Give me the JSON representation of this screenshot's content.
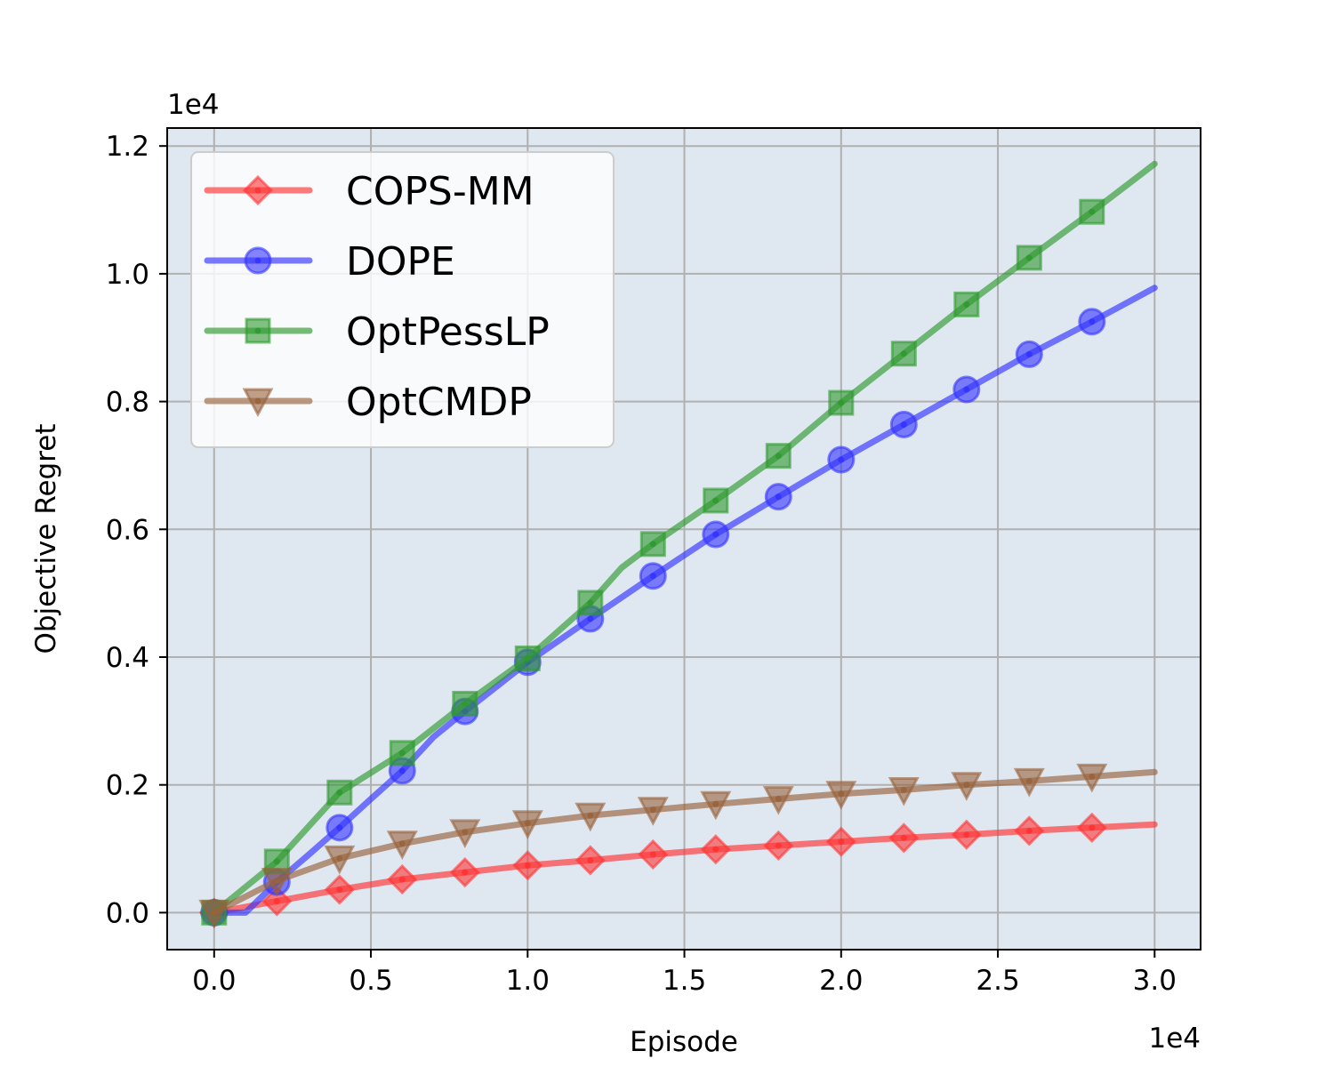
{
  "chart_data": {
    "type": "line",
    "xlabel": "Episode",
    "ylabel": "Objective Regret",
    "x_offset_label": "1e4",
    "y_offset_label": "1e4",
    "xlim": [
      -0.15,
      3.15
    ],
    "ylim": [
      -0.06,
      1.23
    ],
    "x_ticks": [
      0.0,
      0.5,
      1.0,
      1.5,
      2.0,
      2.5,
      3.0
    ],
    "y_ticks": [
      0.0,
      0.2,
      0.4,
      0.6,
      0.8,
      1.0,
      1.2
    ],
    "x_tick_labels": [
      "0.0",
      "0.5",
      "1.0",
      "1.5",
      "2.0",
      "2.5",
      "3.0"
    ],
    "y_tick_labels": [
      "0.0",
      "0.2",
      "0.4",
      "0.6",
      "0.8",
      "1.0",
      "1.2"
    ],
    "grid": true,
    "background": "#dfe7f0",
    "legend_position": "upper-left",
    "series": [
      {
        "name": "COPS-MM",
        "color": "#ff3333",
        "marker": "diamond",
        "x": [
          0.0,
          0.2,
          0.4,
          0.6,
          0.8,
          1.0,
          1.2,
          1.4,
          1.6,
          1.8,
          2.0,
          2.2,
          2.4,
          2.6,
          2.8,
          3.0
        ],
        "y": [
          0.0,
          0.018,
          0.036,
          0.052,
          0.063,
          0.074,
          0.082,
          0.091,
          0.099,
          0.105,
          0.111,
          0.117,
          0.122,
          0.128,
          0.133,
          0.138
        ],
        "marker_x": [
          0.0,
          0.2,
          0.4,
          0.6,
          0.8,
          1.0,
          1.2,
          1.4,
          1.6,
          1.8,
          2.0,
          2.2,
          2.4,
          2.6,
          2.8
        ]
      },
      {
        "name": "DOPE",
        "color": "#3333ff",
        "marker": "circle",
        "x": [
          0.0,
          0.1,
          0.2,
          0.3,
          0.4,
          0.5,
          0.6,
          0.7,
          0.8,
          1.0,
          1.2,
          1.4,
          1.6,
          1.8,
          2.0,
          2.2,
          2.4,
          2.6,
          2.8,
          3.0
        ],
        "y": [
          0.0,
          0.0,
          0.048,
          0.09,
          0.133,
          0.178,
          0.222,
          0.275,
          0.315,
          0.392,
          0.46,
          0.527,
          0.592,
          0.651,
          0.709,
          0.764,
          0.819,
          0.874,
          0.925,
          0.978
        ],
        "marker_x": [
          0.0,
          0.2,
          0.4,
          0.6,
          0.8,
          1.0,
          1.2,
          1.4,
          1.6,
          1.8,
          2.0,
          2.2,
          2.4,
          2.6,
          2.8
        ]
      },
      {
        "name": "OptPessLP",
        "color": "#2e9a2e",
        "marker": "square",
        "x": [
          0.0,
          0.2,
          0.4,
          0.6,
          0.8,
          1.0,
          1.2,
          1.3,
          1.4,
          1.6,
          1.8,
          2.0,
          2.2,
          2.4,
          2.6,
          2.8,
          3.0
        ],
        "y": [
          0.0,
          0.08,
          0.188,
          0.25,
          0.327,
          0.398,
          0.485,
          0.54,
          0.577,
          0.645,
          0.715,
          0.798,
          0.875,
          0.952,
          1.025,
          1.097,
          1.172
        ],
        "marker_x": [
          0.0,
          0.2,
          0.4,
          0.6,
          0.8,
          1.0,
          1.2,
          1.4,
          1.6,
          1.8,
          2.0,
          2.2,
          2.4,
          2.6,
          2.8
        ]
      },
      {
        "name": "OptCMDP",
        "color": "#98633c",
        "marker": "triangle-down",
        "x": [
          0.0,
          0.2,
          0.4,
          0.6,
          0.8,
          1.0,
          1.2,
          1.4,
          1.6,
          1.8,
          2.0,
          2.2,
          2.4,
          2.6,
          2.8,
          3.0
        ],
        "y": [
          0.0,
          0.05,
          0.085,
          0.108,
          0.126,
          0.14,
          0.152,
          0.161,
          0.17,
          0.178,
          0.186,
          0.192,
          0.2,
          0.206,
          0.213,
          0.22
        ],
        "marker_x": [
          0.0,
          0.2,
          0.4,
          0.6,
          0.8,
          1.0,
          1.2,
          1.4,
          1.6,
          1.8,
          2.0,
          2.2,
          2.4,
          2.6,
          2.8
        ]
      }
    ]
  }
}
